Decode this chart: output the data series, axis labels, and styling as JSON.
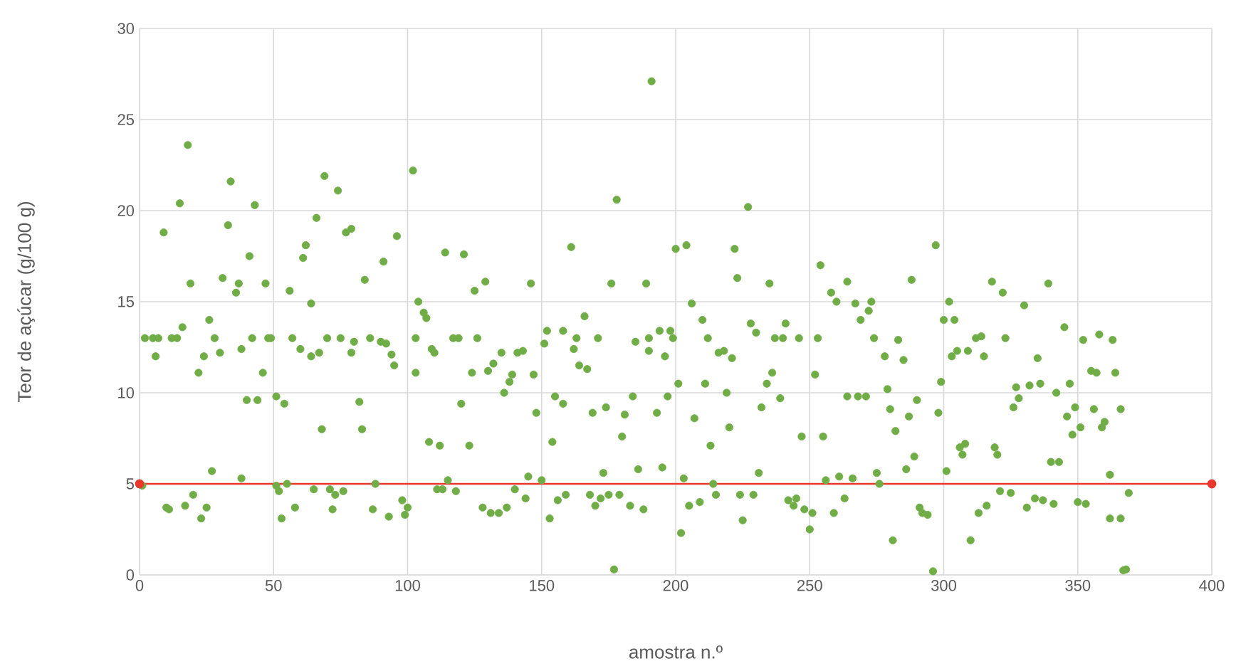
{
  "chart_data": {
    "type": "scatter",
    "xlabel": "amostra n.º",
    "ylabel": "Teor de açúcar (g/100 g)",
    "xlim": [
      0,
      400
    ],
    "ylim": [
      0,
      30
    ],
    "xticks": [
      0,
      50,
      100,
      150,
      200,
      250,
      300,
      350,
      400
    ],
    "yticks": [
      0,
      5,
      10,
      15,
      20,
      25,
      30
    ],
    "grid": true,
    "marker": "circle",
    "series": [
      {
        "color": "#70ad47",
        "x": [
          1,
          2,
          5,
          6,
          7,
          9,
          10,
          11,
          12,
          14,
          15,
          16,
          17,
          18,
          19,
          20,
          22,
          23,
          24,
          25,
          26,
          27,
          28,
          30,
          31,
          33,
          34,
          36,
          37,
          38,
          38,
          40,
          41,
          42,
          43,
          44,
          46,
          47,
          48,
          49,
          51,
          51,
          52,
          53,
          54,
          55,
          56,
          57,
          58,
          60,
          61,
          62,
          64,
          64,
          65,
          66,
          67,
          68,
          69,
          70,
          71,
          72,
          73,
          74,
          75,
          76,
          77,
          79,
          79,
          80,
          82,
          83,
          84,
          86,
          87,
          88,
          90,
          91,
          92,
          93,
          94,
          95,
          96,
          98,
          99,
          100,
          102,
          103,
          103,
          104,
          106,
          107,
          108,
          109,
          110,
          111,
          112,
          113,
          114,
          115,
          117,
          118,
          119,
          120,
          121,
          123,
          124,
          125,
          126,
          128,
          129,
          130,
          131,
          132,
          134,
          135,
          136,
          137,
          138,
          139,
          140,
          141,
          143,
          144,
          145,
          146,
          147,
          148,
          150,
          151,
          152,
          153,
          154,
          155,
          156,
          158,
          158,
          159,
          161,
          162,
          163,
          164,
          166,
          167,
          168,
          169,
          170,
          171,
          172,
          173,
          174,
          175,
          176,
          177,
          178,
          179,
          180,
          181,
          183,
          184,
          185,
          186,
          188,
          189,
          190,
          190,
          191,
          193,
          194,
          195,
          196,
          197,
          198,
          199,
          200,
          201,
          202,
          203,
          204,
          205,
          206,
          207,
          209,
          210,
          211,
          212,
          213,
          214,
          215,
          216,
          218,
          219,
          220,
          221,
          222,
          223,
          224,
          225,
          227,
          228,
          229,
          230,
          231,
          232,
          234,
          235,
          236,
          237,
          239,
          240,
          241,
          242,
          244,
          245,
          246,
          247,
          248,
          250,
          251,
          252,
          253,
          254,
          255,
          256,
          258,
          259,
          260,
          261,
          263,
          264,
          264,
          266,
          267,
          268,
          269,
          271,
          272,
          273,
          274,
          275,
          276,
          278,
          279,
          280,
          281,
          282,
          283,
          285,
          286,
          287,
          288,
          289,
          290,
          291,
          292,
          294,
          296,
          297,
          298,
          299,
          300,
          301,
          302,
          303,
          304,
          305,
          306,
          307,
          308,
          309,
          310,
          312,
          313,
          314,
          315,
          316,
          318,
          319,
          320,
          321,
          322,
          323,
          325,
          326,
          327,
          328,
          330,
          331,
          332,
          334,
          335,
          336,
          337,
          339,
          340,
          341,
          342,
          343,
          345,
          346,
          347,
          348,
          349,
          350,
          351,
          352,
          353,
          355,
          356,
          357,
          358,
          359,
          360,
          362,
          362,
          363,
          364,
          366,
          366,
          367,
          368,
          369
        ],
        "values": [
          4.9,
          13,
          13,
          12,
          13,
          18.8,
          3.7,
          3.6,
          13,
          13,
          20.4,
          13.6,
          3.8,
          23.6,
          16,
          4.4,
          11.1,
          3.1,
          12,
          3.7,
          14,
          5.7,
          13,
          12.2,
          16.3,
          19.2,
          21.6,
          15.5,
          16,
          5.3,
          12.4,
          9.6,
          17.5,
          13,
          20.3,
          9.6,
          11.1,
          16,
          13,
          13,
          9.8,
          4.9,
          4.6,
          3.1,
          9.4,
          5,
          15.6,
          13,
          3.7,
          12.4,
          17.4,
          18.1,
          12,
          14.9,
          4.7,
          19.6,
          12.2,
          8,
          21.9,
          13,
          4.7,
          3.6,
          4.4,
          21.1,
          13,
          4.6,
          18.8,
          19,
          12.2,
          12.8,
          9.5,
          8,
          16.2,
          13,
          3.6,
          5,
          12.8,
          17.2,
          12.7,
          3.2,
          12.1,
          11.5,
          18.6,
          4.1,
          3.3,
          3.7,
          22.2,
          11.1,
          13,
          15,
          14.4,
          14.1,
          7.3,
          12.4,
          12.2,
          4.7,
          7.1,
          4.7,
          17.7,
          5.2,
          13,
          4.6,
          13,
          9.4,
          17.6,
          7.1,
          11.1,
          15.6,
          13,
          3.7,
          16.1,
          11.2,
          3.4,
          11.6,
          3.4,
          12.2,
          10,
          3.7,
          10.6,
          11,
          4.7,
          12.2,
          12.3,
          4.2,
          5.4,
          16,
          11,
          8.9,
          5.2,
          12.7,
          13.4,
          3.1,
          7.3,
          9.8,
          4.1,
          9.4,
          13.4,
          4.4,
          18,
          12.4,
          13,
          11.5,
          14.2,
          11.3,
          4.4,
          8.9,
          3.8,
          13,
          4.2,
          5.6,
          9.2,
          4.4,
          16,
          0.3,
          20.6,
          4.4,
          7.6,
          8.8,
          3.8,
          9.8,
          12.8,
          5.8,
          3.6,
          16,
          12.3,
          13,
          27.1,
          8.9,
          13.4,
          5.9,
          12,
          9.8,
          13.4,
          13,
          17.9,
          10.5,
          2.3,
          5.3,
          18.1,
          3.8,
          14.9,
          8.6,
          4,
          14,
          10.5,
          13,
          7.1,
          5,
          4.4,
          12.2,
          12.3,
          10,
          8.1,
          11.9,
          17.9,
          16.3,
          4.4,
          3,
          20.2,
          13.8,
          4.4,
          13.3,
          5.6,
          9.2,
          10.5,
          16,
          11.1,
          13,
          9.7,
          13,
          13.8,
          4.1,
          3.8,
          4.2,
          13,
          7.6,
          3.6,
          2.5,
          3.4,
          11,
          13,
          17,
          7.6,
          5.2,
          15.5,
          3.4,
          15,
          5.4,
          4.2,
          16.1,
          9.8,
          5.3,
          14.9,
          9.8,
          14,
          9.8,
          14.5,
          15,
          13,
          5.6,
          5,
          12,
          10.2,
          9.1,
          1.9,
          7.9,
          12.9,
          11.8,
          5.8,
          8.7,
          16.2,
          6.5,
          9.6,
          3.7,
          3.4,
          3.3,
          0.2,
          18.1,
          8.9,
          10.6,
          14,
          5.7,
          15,
          12,
          14,
          12.3,
          7,
          6.6,
          7.2,
          12.3,
          1.9,
          13,
          3.4,
          13.1,
          12,
          3.8,
          16.1,
          7,
          6.6,
          4.6,
          15.5,
          13,
          4.5,
          9.2,
          10.3,
          9.7,
          14.8,
          3.7,
          10.4,
          4.2,
          11.9,
          10.5,
          4.1,
          16,
          6.2,
          3.9,
          10,
          6.2,
          13.6,
          8.7,
          10.5,
          7.7,
          9.2,
          4,
          8.1,
          12.9,
          3.9,
          11.2,
          9.1,
          11.1,
          13.2,
          8.1,
          8.4,
          5.5,
          3.1,
          12.9,
          11.1,
          9.1,
          3.1,
          0.25,
          0.3,
          4.5
        ]
      },
      {
        "type": "line",
        "color": "#e8382e",
        "x": [
          0,
          400
        ],
        "values": [
          5,
          5
        ]
      }
    ]
  }
}
